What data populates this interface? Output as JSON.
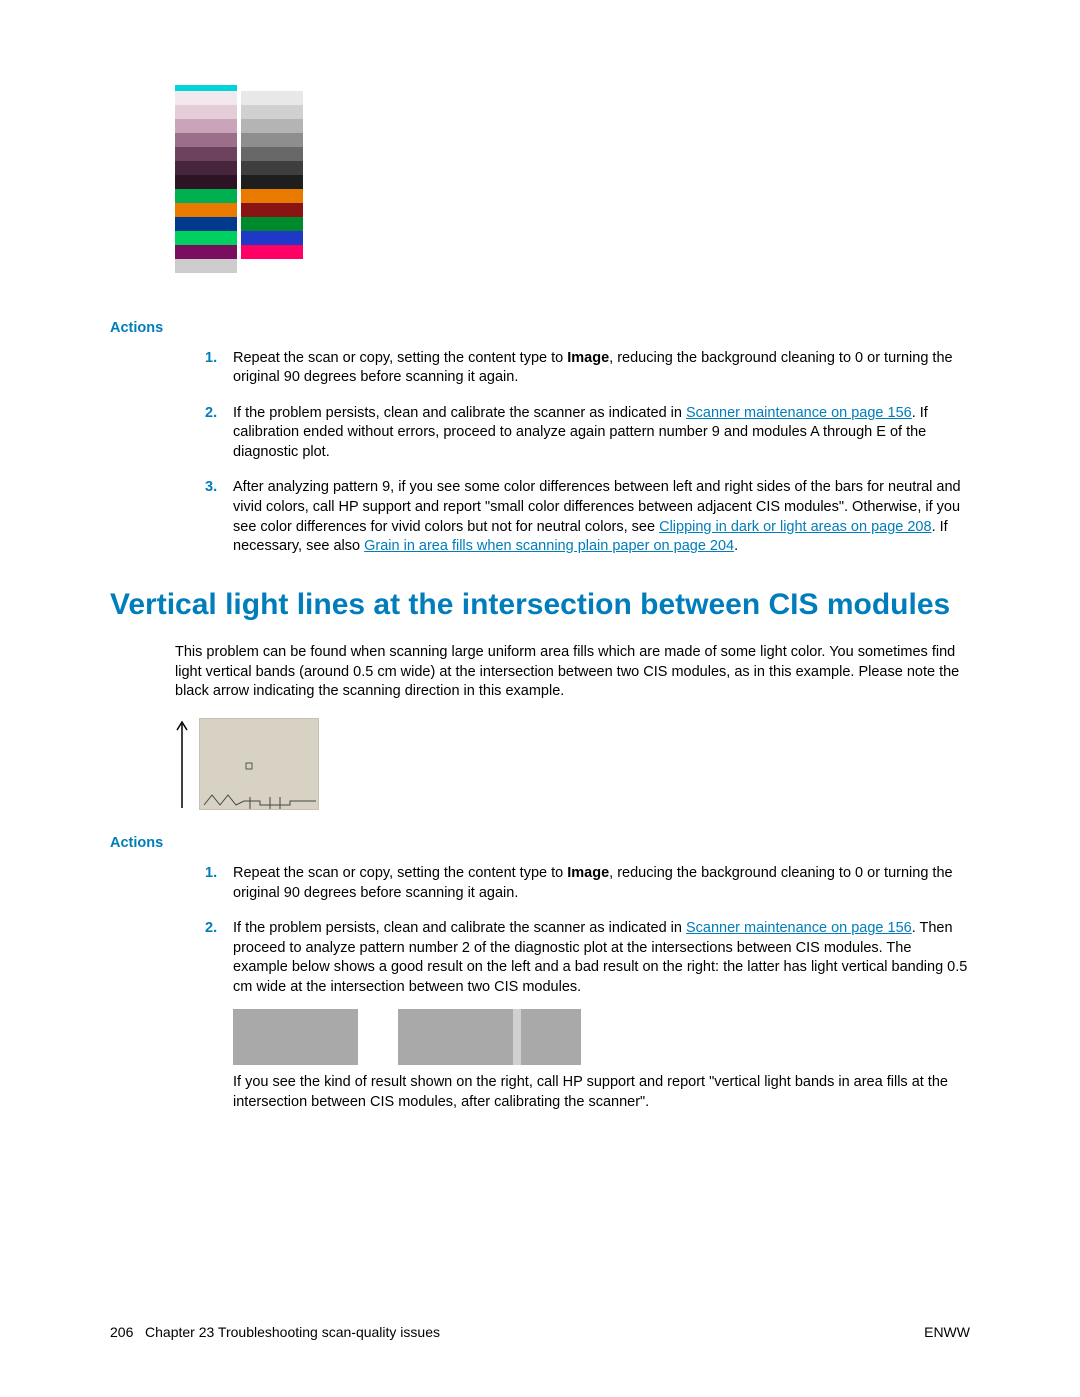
{
  "chart": {
    "cyan_bar": "#00d4d8",
    "left_swatches": [
      {
        "c": "#f2e8ee",
        "h": 14
      },
      {
        "c": "#e4cdd9",
        "h": 14
      },
      {
        "c": "#caa4b9",
        "h": 14
      },
      {
        "c": "#9b6e89",
        "h": 14
      },
      {
        "c": "#6d425f",
        "h": 14
      },
      {
        "c": "#46253d",
        "h": 14
      },
      {
        "c": "#2c1425",
        "h": 14
      },
      {
        "c": "#00b050",
        "h": 14
      },
      {
        "c": "#e87a00",
        "h": 14
      },
      {
        "c": "#003a8c",
        "h": 14
      },
      {
        "c": "#00d060",
        "h": 14
      },
      {
        "c": "#7a0d5e",
        "h": 14
      },
      {
        "c": "#cccccc",
        "h": 14
      },
      {
        "c": "#ffffff",
        "h": 14
      }
    ],
    "right_swatches": [
      {
        "c": "#e8e8e8",
        "h": 14
      },
      {
        "c": "#d0d0d0",
        "h": 14
      },
      {
        "c": "#b4b4b4",
        "h": 14
      },
      {
        "c": "#8e8e8e",
        "h": 14
      },
      {
        "c": "#686868",
        "h": 14
      },
      {
        "c": "#3e3e3e",
        "h": 14
      },
      {
        "c": "#1e1e1e",
        "h": 14
      },
      {
        "c": "#e87a00",
        "h": 14
      },
      {
        "c": "#8a1414",
        "h": 14
      },
      {
        "c": "#008a2e",
        "h": 14
      },
      {
        "c": "#1f38c7",
        "h": 14
      },
      {
        "c": "#ff0066",
        "h": 14
      },
      {
        "c": "#ffffff",
        "h": 14
      },
      {
        "c": "#ffffff",
        "h": 14
      }
    ]
  },
  "actions_label": "Actions",
  "section1": {
    "items": [
      {
        "num": "1.",
        "pre": "Repeat the scan or copy, setting the content type to ",
        "bold": "Image",
        "post": ", reducing the background cleaning to 0 or turning the original 90 degrees before scanning it again."
      },
      {
        "num": "2.",
        "pre": "If the problem persists, clean and calibrate the scanner as indicated in ",
        "link1": "Scanner maintenance on page 156",
        "post1": ". If calibration ended without errors, proceed to analyze again pattern number 9 and modules A through E of the diagnostic plot."
      },
      {
        "num": "3.",
        "pre": "After analyzing pattern 9, if you see some color differences between left and right sides of the bars for neutral and vivid colors, call HP support and report \"small color differences between adjacent CIS modules\". Otherwise, if you see color differences for vivid colors but not for neutral colors, see ",
        "link1": "Clipping in dark or light areas on page 208",
        "mid": ". If necessary, see also ",
        "link2": "Grain in area fills when scanning plain paper on page 204",
        "post": "."
      }
    ]
  },
  "heading": "Vertical light lines at the intersection between CIS modules",
  "intro": "This problem can be found when scanning large uniform area fills which are made of some light color. You sometimes find light vertical bands (around 0.5 cm wide) at the intersection between two CIS modules, as in this example. Please note the black arrow indicating the scanning direction in this example.",
  "section2": {
    "items": [
      {
        "num": "1.",
        "pre": "Repeat the scan or copy, setting the content type to ",
        "bold": "Image",
        "post": ", reducing the background cleaning to 0 or turning the original 90 degrees before scanning it again."
      },
      {
        "num": "2.",
        "pre": "If the problem persists, clean and calibrate the scanner as indicated in ",
        "link1": "Scanner maintenance on page 156",
        "post1": ". Then proceed to analyze pattern number 2 of the diagnostic plot at the intersections between CIS modules. The example below shows a good result on the left and a bad result on the right: the latter has light vertical banding 0.5 cm wide at the intersection between two CIS modules.",
        "after": "If you see the kind of result shown on the right, call HP support and report \"vertical light bands in area fills at the intersection between CIS modules, after calibrating the scanner\"."
      }
    ]
  },
  "gray_boxes": {
    "color": "#a9a9a9",
    "light": "#d0d0d0",
    "widths": [
      125,
      40,
      115,
      8,
      60
    ]
  },
  "footer": {
    "page": "206",
    "chapter": "Chapter 23   Troubleshooting scan-quality issues",
    "right": "ENWW"
  }
}
